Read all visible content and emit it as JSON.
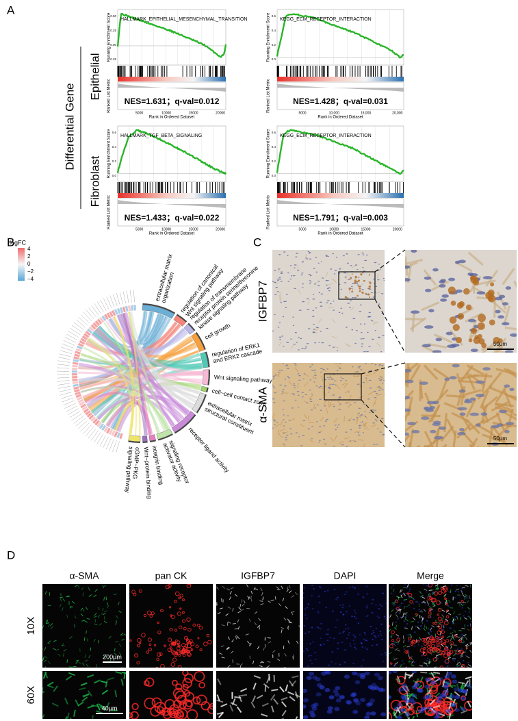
{
  "panel_a": {
    "label": "A",
    "group_label": "Differential Gene",
    "y_label_top": "Running Enrichment Score",
    "y_label_bottom": "Ranked List Metric",
    "x_label": "Rank in Ordered Dataset",
    "rows": [
      {
        "label": "Epithelial",
        "plots": [
          {
            "title": "HALLMARK_EPITHELIAL_MESENCHYMAL_TRANSITION",
            "stats": "NES=1.631；q-val=0.012",
            "yticks": [
              "0.50",
              "0.25",
              "0.00",
              "-0.25"
            ],
            "xticks": [
              "5000",
              "10000",
              "15000",
              "20000"
            ]
          },
          {
            "title": "KEGG_ECM_RECEPTOR_INTERACTION",
            "stats": "NES=1.428；q-val=0.031",
            "yticks": [
              "0.6",
              "0.4",
              "0.2",
              "0.0"
            ],
            "xticks": [
              "5000",
              "10,000",
              "15,000",
              "20,000"
            ]
          }
        ]
      },
      {
        "label": "Fibroblast",
        "plots": [
          {
            "title": "HALLMARK_TGF_BETA_SIGNALING",
            "stats": "NES=1.433；q-val=0.022",
            "yticks": [
              "0.6",
              "0.4",
              "0.2",
              "0.0"
            ],
            "xticks": [
              "5000",
              "10000",
              "15000",
              "20000"
            ]
          },
          {
            "title": "KEGG_ECM_RECEPTOR_INTERACTION",
            "stats": "NES=1.791；q-val=0.003",
            "yticks": [
              "0.6",
              "0.4",
              "0.2",
              "0.0"
            ],
            "xticks": [
              "5000",
              "10000",
              "15000",
              "20000"
            ]
          }
        ]
      }
    ]
  },
  "panel_b": {
    "label": "B",
    "legend_title": "logFC",
    "legend_ticks": [
      "4",
      "2",
      "0",
      "−2",
      "−4"
    ],
    "terms": [
      {
        "label": [
          "extracellular matrix",
          "organization"
        ],
        "color": "#6baed6"
      },
      {
        "label": [
          "regulation of canonical",
          "Wnt signaling pathway"
        ],
        "color": "#f4857a"
      },
      {
        "label": [
          "regulation of transmembrane",
          "receptor protein serine/threonine",
          "kinase signaling pathway"
        ],
        "color": "#b9b7e6"
      },
      {
        "label": [
          "cell growth"
        ],
        "color": "#f5a03c"
      },
      {
        "label": [
          "regulation of ERK1",
          "and ERK2 cascade"
        ],
        "color": "#4fc8b5"
      },
      {
        "label": [
          "Wnt signaling pathway"
        ],
        "color": "#f7b8d4"
      },
      {
        "label": [
          "cell−cell contact zone"
        ],
        "color": "#9fd36a"
      },
      {
        "label": [
          "extracellular matrix",
          "structural constituent"
        ],
        "color": "#dcdcdc"
      },
      {
        "label": [
          "receptor ligand activity"
        ],
        "color": "#c98bd8"
      },
      {
        "label": [
          "signaling receptor",
          "activator activity"
        ],
        "color": "#bfe3a8"
      },
      {
        "label": [
          "integrin binding"
        ],
        "color": "#e67fc0"
      },
      {
        "label": [
          "Wnt−protein binding"
        ],
        "color": "#9a6fc0"
      },
      {
        "label": [
          "cGMP−PKG",
          "signaling pathway"
        ],
        "color": "#eee46a"
      }
    ]
  },
  "panel_c": {
    "label": "C",
    "rows": [
      {
        "label": "IGFBP7",
        "scale": "50μm"
      },
      {
        "label": "α-SMA",
        "scale": "50μm"
      }
    ]
  },
  "panel_d": {
    "label": "D",
    "columns": [
      "α-SMA",
      "pan CK",
      "IGFBP7",
      "DAPI",
      "Merge"
    ],
    "rows": [
      {
        "label": "10X",
        "scale": "200μm"
      },
      {
        "label": "60X",
        "scale": "40μm"
      }
    ]
  }
}
